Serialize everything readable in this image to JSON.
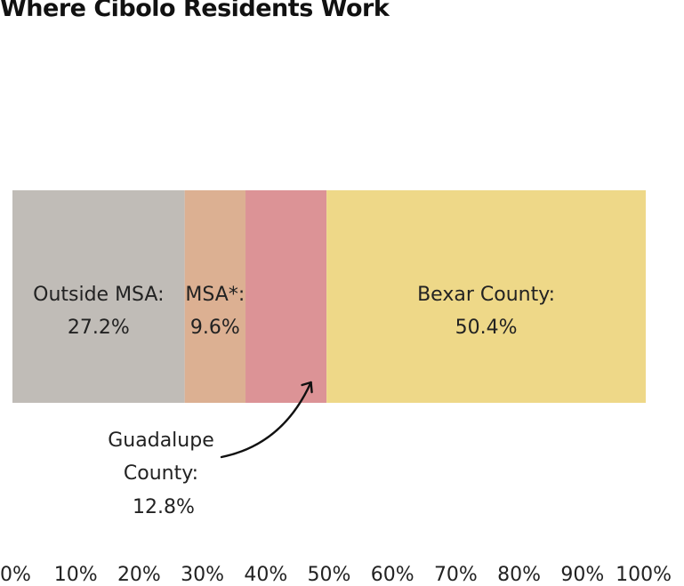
{
  "chart_data": {
    "type": "bar",
    "orientation": "horizontal-stacked",
    "title": "Where Cibolo Residents Work",
    "xlim": [
      0,
      100
    ],
    "x_ticks": [
      "0%",
      "10%",
      "20%",
      "30%",
      "40%",
      "50%",
      "60%",
      "70%",
      "80%",
      "90%",
      "100%"
    ],
    "segments": [
      {
        "label": "Outside MSA:",
        "value": 27.2,
        "value_text": "27.2%",
        "color": "#c0bcb7"
      },
      {
        "label": "MSA*:",
        "value": 9.6,
        "value_text": "9.6%",
        "color": "#dcb092"
      },
      {
        "label": "Guadalupe County:",
        "label_lines": [
          "Guadalupe",
          "County:"
        ],
        "value": 12.8,
        "value_text": "12.8%",
        "color": "#dc9396",
        "callout": true
      },
      {
        "label": "Bexar County:",
        "value": 50.4,
        "value_text": "50.4%",
        "color": "#eed888"
      }
    ],
    "grid": false,
    "legend": "none"
  }
}
